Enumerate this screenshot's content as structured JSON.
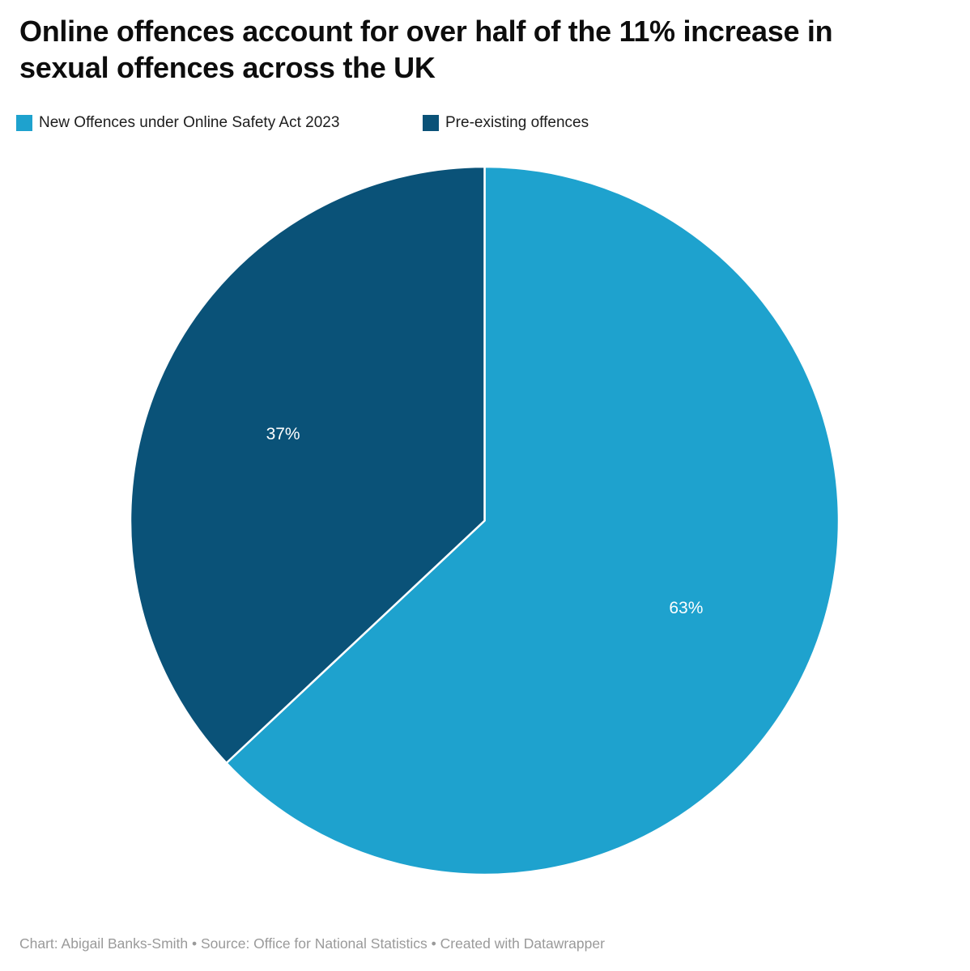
{
  "header": {
    "title": "Online offences account for over half of the 11% increase in\nsexual offences across the UK"
  },
  "legend": {
    "items": [
      {
        "label": "New Offences under Online Safety Act 2023",
        "color": "#1EA2CE"
      },
      {
        "label": "Pre-existing offences",
        "color": "#0A5278"
      }
    ]
  },
  "chart_data": {
    "type": "pie",
    "title": "Online offences account for over half of the 11% increase in sexual offences across the UK",
    "categories": [
      "New Offences under Online Safety Act 2023",
      "Pre-existing offences"
    ],
    "values": [
      63,
      37
    ],
    "slices": [
      {
        "label": "New Offences under Online Safety Act 2023",
        "value": 63,
        "display": "63%",
        "color": "#1EA2CE"
      },
      {
        "label": "Pre-existing offences",
        "value": 37,
        "display": "37%",
        "color": "#0A5278"
      }
    ],
    "start_angle_deg": 0,
    "direction": "clockwise",
    "label_color": "#ffffff",
    "legend_position": "top"
  },
  "footer": {
    "text": "Chart: Abigail Banks-Smith • Source: Office for National Statistics • Created with Datawrapper"
  }
}
